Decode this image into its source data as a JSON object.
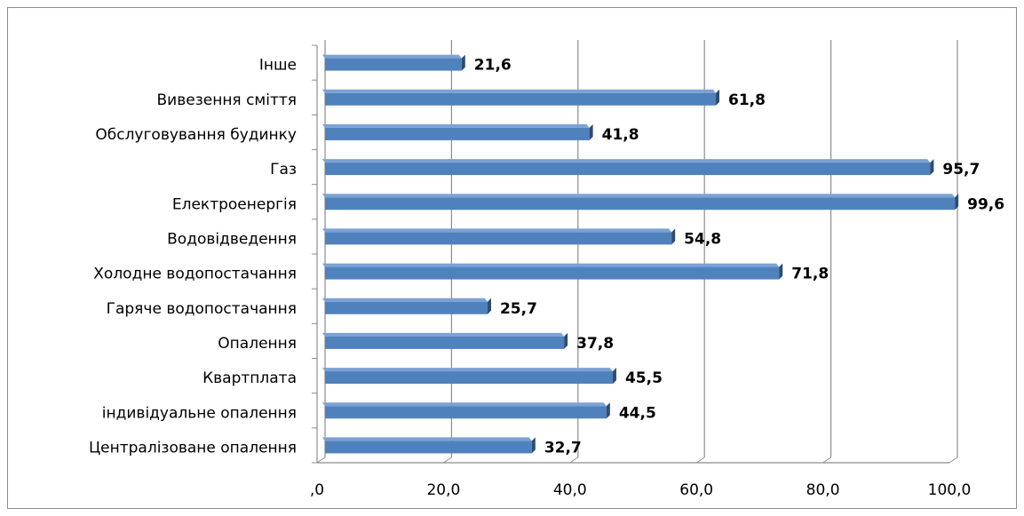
{
  "chart_data": {
    "type": "bar",
    "orientation": "horizontal",
    "categories": [
      "Централізоване опалення",
      "індивідуальне опалення",
      "Квартплата",
      "Опалення",
      "Гаряче водопостачання",
      "Холодне водопостачання",
      "Водовідведення",
      "Електроенергія",
      "Газ",
      "Обслуговування будинку",
      "Вивезення сміття",
      "Інше"
    ],
    "values": [
      32.7,
      44.5,
      45.5,
      37.8,
      25.7,
      71.8,
      54.8,
      99.6,
      95.7,
      41.8,
      61.8,
      21.6
    ],
    "data_labels": [
      "32,7",
      "44,5",
      "45,5",
      "37,8",
      "25,7",
      "71,8",
      "54,8",
      "99,6",
      "95,7",
      "41,8",
      "61,8",
      "21,6"
    ],
    "x_ticks": [
      0,
      20,
      40,
      60,
      80,
      100
    ],
    "x_tick_labels": [
      ",0",
      "20,0",
      "40,0",
      "60,0",
      "80,0",
      "100,0"
    ],
    "xlim": [
      0,
      100
    ],
    "grid": true,
    "legend": "none",
    "title": "",
    "xlabel": "",
    "ylabel": "",
    "colors": {
      "bar": "#4f81bd",
      "bar_top": "#7ba2d6",
      "bar_side": "#2c4d75",
      "grid": "#8c8c8c"
    }
  }
}
